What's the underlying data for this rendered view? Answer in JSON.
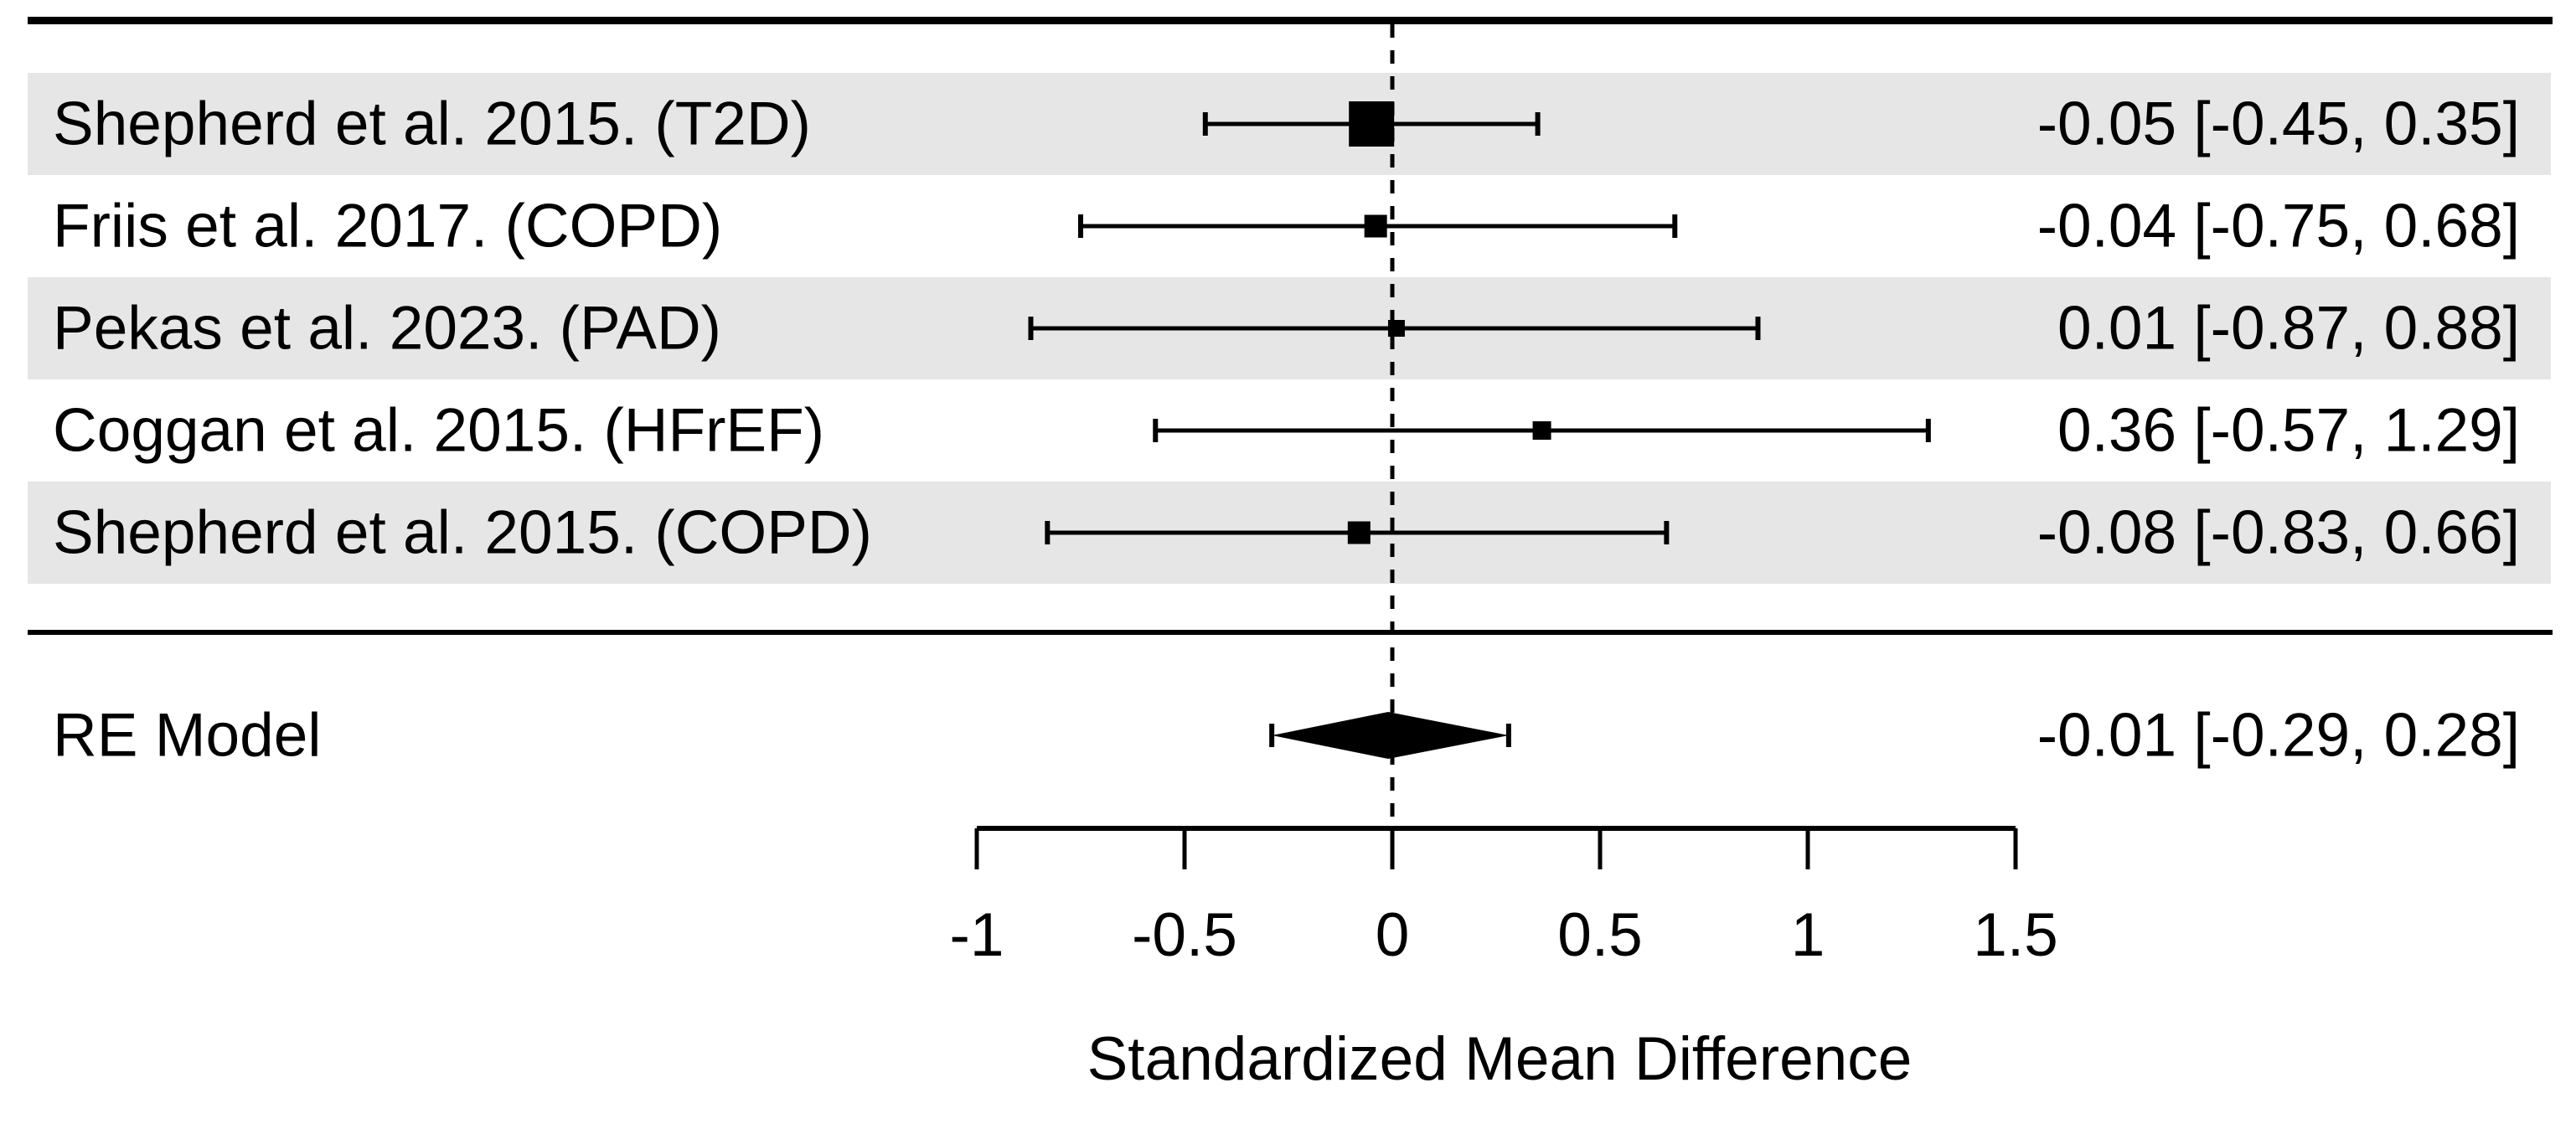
{
  "chart_data": {
    "type": "forest",
    "xlabel": "Standardized Mean Difference",
    "x_ticks": [
      -1,
      -0.5,
      0,
      0.5,
      1,
      1.5
    ],
    "x_tick_labels": [
      "-1",
      "-0.5",
      "0",
      "0.5",
      "1",
      "1.5"
    ],
    "xlim": [
      -1,
      1.5
    ],
    "zero_reference": 0,
    "studies": [
      {
        "label": "Shepherd et al. 2015. (T2D)",
        "estimate": -0.05,
        "ci_lower": -0.45,
        "ci_upper": 0.35,
        "annotation": "-0.05 [-0.45, 0.35]",
        "box_size": 54,
        "shaded": true
      },
      {
        "label": "Friis et al. 2017. (COPD)",
        "estimate": -0.04,
        "ci_lower": -0.75,
        "ci_upper": 0.68,
        "annotation": "-0.04 [-0.75, 0.68]",
        "box_size": 27,
        "shaded": false
      },
      {
        "label": "Pekas et al. 2023. (PAD)",
        "estimate": 0.01,
        "ci_lower": -0.87,
        "ci_upper": 0.88,
        "annotation": "0.01 [-0.87, 0.88]",
        "box_size": 20,
        "shaded": true
      },
      {
        "label": "Coggan et al. 2015. (HFrEF)",
        "estimate": 0.36,
        "ci_lower": -0.57,
        "ci_upper": 1.29,
        "annotation": "0.36 [-0.57, 1.29]",
        "box_size": 22,
        "shaded": false
      },
      {
        "label": "Shepherd et al. 2015. (COPD)",
        "estimate": -0.08,
        "ci_lower": -0.83,
        "ci_upper": 0.66,
        "annotation": "-0.08 [-0.83, 0.66]",
        "box_size": 27,
        "shaded": true
      }
    ],
    "summary": {
      "label": "RE Model",
      "estimate": -0.01,
      "ci_lower": -0.29,
      "ci_upper": 0.28,
      "annotation": "-0.01 [-0.29, 0.28]"
    },
    "colors": {
      "foreground": "#000000",
      "row_shade": "#e6e6e6",
      "background": "#ffffff"
    }
  }
}
